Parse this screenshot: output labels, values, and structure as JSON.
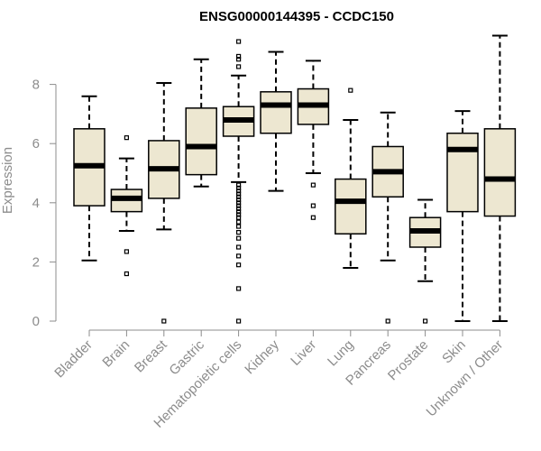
{
  "chart_data": {
    "type": "box",
    "title": "ENSG00000144395 - CCDC150",
    "xlabel": "",
    "ylabel": "Expression",
    "ylim": [
      0,
      9.7
    ],
    "yticks": [
      0,
      2,
      4,
      6,
      8
    ],
    "box_fill": "#ede7d1",
    "outline_color": "#000000",
    "axis_color": "#8c8c8c",
    "categories": [
      "Bladder",
      "Brain",
      "Breast",
      "Gastric",
      "Hematopoietic cells",
      "Kidney",
      "Liver",
      "Lung",
      "Pancreas",
      "Prostate",
      "Skin",
      "Unknown / Other"
    ],
    "boxes": [
      {
        "whisker_low": 2.05,
        "q1": 3.9,
        "median": 5.25,
        "q3": 6.5,
        "whisker_high": 7.6,
        "outliers": []
      },
      {
        "whisker_low": 3.05,
        "q1": 3.7,
        "median": 4.15,
        "q3": 4.45,
        "whisker_high": 5.5,
        "outliers": [
          1.6,
          2.35,
          6.2
        ]
      },
      {
        "whisker_low": 3.1,
        "q1": 4.15,
        "median": 5.15,
        "q3": 6.1,
        "whisker_high": 8.05,
        "outliers": [
          0
        ]
      },
      {
        "whisker_low": 4.55,
        "q1": 4.95,
        "median": 5.9,
        "q3": 7.2,
        "whisker_high": 8.85,
        "outliers": []
      },
      {
        "whisker_low": 4.7,
        "q1": 6.25,
        "median": 6.8,
        "q3": 7.25,
        "whisker_high": 8.3,
        "outliers": [
          0,
          1.1,
          1.9,
          2.2,
          2.5,
          2.8,
          3.0,
          3.2,
          3.35,
          3.5,
          3.6,
          3.7,
          3.8,
          3.9,
          4.0,
          4.1,
          4.2,
          4.3,
          4.4,
          4.5,
          4.6,
          8.6,
          8.85,
          8.95,
          9.45
        ]
      },
      {
        "whisker_low": 4.4,
        "q1": 6.35,
        "median": 7.3,
        "q3": 7.75,
        "whisker_high": 9.1,
        "outliers": []
      },
      {
        "whisker_low": 5.0,
        "q1": 6.65,
        "median": 7.3,
        "q3": 7.85,
        "whisker_high": 8.8,
        "outliers": [
          3.5,
          3.9,
          4.6
        ]
      },
      {
        "whisker_low": 1.8,
        "q1": 2.95,
        "median": 4.05,
        "q3": 4.8,
        "whisker_high": 6.8,
        "outliers": [
          7.8
        ]
      },
      {
        "whisker_low": 2.05,
        "q1": 4.2,
        "median": 5.05,
        "q3": 5.9,
        "whisker_high": 7.05,
        "outliers": [
          0
        ]
      },
      {
        "whisker_low": 1.35,
        "q1": 2.5,
        "median": 3.05,
        "q3": 3.5,
        "whisker_high": 4.1,
        "outliers": [
          0
        ]
      },
      {
        "whisker_low": 0.0,
        "q1": 3.7,
        "median": 5.8,
        "q3": 6.35,
        "whisker_high": 7.1,
        "outliers": []
      },
      {
        "whisker_low": 0.0,
        "q1": 3.55,
        "median": 4.8,
        "q3": 6.5,
        "whisker_high": 9.65,
        "outliers": []
      }
    ]
  }
}
